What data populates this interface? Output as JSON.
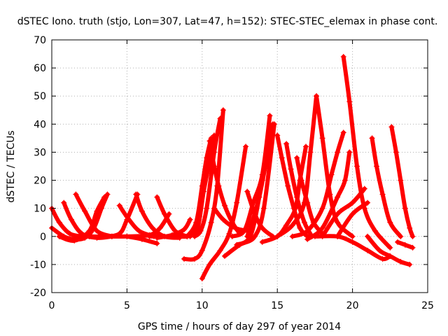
{
  "chart_data": {
    "type": "scatter",
    "title": "dSTEC Iono. truth (stjo, Lon=307, Lat=47, h=152): STEC-STEC_elemax in phase cont.",
    "xlabel": "GPS time / hours of day 297 of year 2014",
    "ylabel": "dSTEC  / TECUs",
    "xlim": [
      0,
      25
    ],
    "ylim": [
      -20,
      70
    ],
    "xticks": [
      0,
      5,
      10,
      15,
      20,
      25
    ],
    "yticks": [
      -20,
      -10,
      0,
      10,
      20,
      30,
      40,
      50,
      60,
      70
    ],
    "grid": true,
    "marker": "plus",
    "color": "#ff0000",
    "arcs": [
      [
        [
          0.0,
          10.0
        ],
        [
          0.5,
          5.0
        ],
        [
          1.2,
          1.0
        ],
        [
          2.0,
          0.0
        ]
      ],
      [
        [
          0.0,
          3.0
        ],
        [
          0.8,
          0.0
        ],
        [
          1.5,
          -1.0
        ],
        [
          2.2,
          -0.5
        ],
        [
          2.8,
          3.0
        ],
        [
          3.3,
          10.0
        ],
        [
          3.7,
          15.0
        ]
      ],
      [
        [
          0.8,
          12.0
        ],
        [
          1.3,
          6.0
        ],
        [
          2.0,
          1.0
        ],
        [
          3.0,
          -0.5
        ],
        [
          4.0,
          0.0
        ]
      ],
      [
        [
          1.6,
          15.0
        ],
        [
          2.2,
          9.0
        ],
        [
          3.0,
          2.0
        ],
        [
          4.0,
          0.0
        ]
      ],
      [
        [
          0.5,
          0.0
        ],
        [
          1.5,
          -1.5
        ],
        [
          2.5,
          2.0
        ],
        [
          3.0,
          9.0
        ],
        [
          3.5,
          14.0
        ]
      ],
      [
        [
          2.5,
          0.0
        ],
        [
          3.5,
          0.0
        ],
        [
          4.5,
          1.0
        ],
        [
          5.0,
          6.0
        ],
        [
          5.7,
          15.0
        ]
      ],
      [
        [
          4.5,
          11.0
        ],
        [
          5.0,
          7.0
        ],
        [
          5.8,
          2.0
        ],
        [
          6.8,
          0.0
        ]
      ],
      [
        [
          3.5,
          0.0
        ],
        [
          5.0,
          0.0
        ],
        [
          6.5,
          0.5
        ],
        [
          7.2,
          3.0
        ],
        [
          7.8,
          8.0
        ]
      ],
      [
        [
          5.6,
          15.0
        ],
        [
          6.0,
          9.0
        ],
        [
          6.7,
          3.0
        ],
        [
          7.5,
          0.0
        ],
        [
          8.5,
          -0.5
        ]
      ],
      [
        [
          7.0,
          14.0
        ],
        [
          7.5,
          8.0
        ],
        [
          8.2,
          2.0
        ],
        [
          9.0,
          0.0
        ]
      ],
      [
        [
          5.0,
          0.0
        ],
        [
          6.0,
          -1.0
        ],
        [
          7.0,
          -2.5
        ]
      ],
      [
        [
          7.0,
          -0.5
        ],
        [
          8.0,
          0.5
        ],
        [
          8.8,
          2.5
        ],
        [
          9.2,
          6.0
        ]
      ],
      [
        [
          6.5,
          0.0
        ],
        [
          8.0,
          0.0
        ],
        [
          9.0,
          0.0
        ],
        [
          9.5,
          1.0
        ]
      ],
      [
        [
          8.8,
          -8.0
        ],
        [
          9.5,
          -8.0
        ],
        [
          10.0,
          -5.0
        ],
        [
          10.6,
          5.0
        ],
        [
          11.0,
          18.0
        ],
        [
          11.4,
          45.0
        ]
      ],
      [
        [
          9.5,
          0.0
        ],
        [
          9.9,
          2.0
        ],
        [
          10.3,
          10.0
        ],
        [
          10.8,
          30.0
        ],
        [
          11.2,
          42.0
        ]
      ],
      [
        [
          9.2,
          0.0
        ],
        [
          9.7,
          3.0
        ],
        [
          10.1,
          16.0
        ],
        [
          10.5,
          27.0
        ],
        [
          10.8,
          36.0
        ]
      ],
      [
        [
          9.0,
          0.0
        ],
        [
          9.6,
          5.0
        ],
        [
          10.0,
          18.0
        ],
        [
          10.3,
          28.0
        ],
        [
          10.6,
          35.0
        ]
      ],
      [
        [
          10.0,
          -15.0
        ],
        [
          10.5,
          -10.0
        ],
        [
          11.2,
          -5.0
        ],
        [
          11.8,
          1.0
        ],
        [
          12.3,
          12.0
        ],
        [
          12.9,
          32.0
        ]
      ],
      [
        [
          10.5,
          34.0
        ],
        [
          10.8,
          25.0
        ],
        [
          11.1,
          18.0
        ],
        [
          11.5,
          11.0
        ],
        [
          12.0,
          5.0
        ],
        [
          12.5,
          1.0
        ]
      ],
      [
        [
          10.8,
          10.0
        ],
        [
          11.4,
          6.0
        ],
        [
          12.2,
          3.0
        ],
        [
          13.0,
          2.0
        ]
      ],
      [
        [
          11.5,
          -7.0
        ],
        [
          12.5,
          -3.0
        ],
        [
          13.5,
          0.0
        ],
        [
          14.1,
          10.0
        ],
        [
          14.8,
          40.0
        ]
      ],
      [
        [
          12.3,
          -3.0
        ],
        [
          13.2,
          0.0
        ],
        [
          13.8,
          14.0
        ],
        [
          14.3,
          28.0
        ],
        [
          14.6,
          38.0
        ]
      ],
      [
        [
          13.0,
          0.0
        ],
        [
          13.6,
          10.0
        ],
        [
          14.0,
          20.0
        ],
        [
          14.4,
          30.0
        ],
        [
          14.7,
          40.0
        ]
      ],
      [
        [
          13.0,
          16.0
        ],
        [
          13.5,
          8.0
        ],
        [
          14.0,
          3.0
        ],
        [
          14.7,
          0.0
        ]
      ],
      [
        [
          12.0,
          0.0
        ],
        [
          12.8,
          2.0
        ],
        [
          13.4,
          12.0
        ],
        [
          14.0,
          22.0
        ],
        [
          14.5,
          43.0
        ]
      ],
      [
        [
          15.0,
          36.0
        ],
        [
          15.3,
          28.0
        ],
        [
          15.7,
          18.0
        ],
        [
          16.1,
          10.0
        ],
        [
          16.5,
          3.0
        ],
        [
          17.0,
          0.0
        ]
      ],
      [
        [
          15.6,
          33.0
        ],
        [
          15.9,
          24.0
        ],
        [
          16.3,
          14.0
        ],
        [
          16.8,
          5.0
        ],
        [
          17.3,
          0.0
        ]
      ],
      [
        [
          14.0,
          -2.0
        ],
        [
          15.0,
          0.0
        ],
        [
          15.6,
          4.0
        ],
        [
          16.2,
          10.0
        ],
        [
          16.5,
          20.0
        ],
        [
          16.9,
          32.0
        ]
      ],
      [
        [
          16.3,
          28.0
        ],
        [
          16.6,
          20.0
        ],
        [
          17.0,
          12.0
        ],
        [
          17.4,
          5.0
        ],
        [
          18.0,
          1.0
        ]
      ],
      [
        [
          15.0,
          0.0
        ],
        [
          16.0,
          4.0
        ],
        [
          16.8,
          12.0
        ],
        [
          17.2,
          30.0
        ],
        [
          17.6,
          50.0
        ]
      ],
      [
        [
          17.6,
          50.0
        ],
        [
          18.0,
          35.0
        ],
        [
          18.5,
          15.0
        ],
        [
          19.0,
          5.0
        ],
        [
          20.0,
          0.0
        ]
      ],
      [
        [
          16.0,
          0.0
        ],
        [
          17.0,
          2.0
        ],
        [
          18.0,
          10.0
        ],
        [
          18.6,
          22.0
        ],
        [
          19.0,
          30.0
        ],
        [
          19.4,
          37.0
        ]
      ],
      [
        [
          19.4,
          64.0
        ],
        [
          19.8,
          48.0
        ],
        [
          20.3,
          25.0
        ],
        [
          20.8,
          10.0
        ],
        [
          21.5,
          2.0
        ],
        [
          22.5,
          -4.0
        ]
      ],
      [
        [
          17.0,
          -1.0
        ],
        [
          18.0,
          3.0
        ],
        [
          19.0,
          14.0
        ],
        [
          19.5,
          20.0
        ],
        [
          19.8,
          30.0
        ]
      ],
      [
        [
          18.0,
          0.0
        ],
        [
          19.0,
          8.0
        ],
        [
          20.0,
          12.0
        ],
        [
          20.8,
          17.0
        ]
      ],
      [
        [
          19.0,
          0.0
        ],
        [
          20.0,
          8.0
        ],
        [
          21.0,
          12.0
        ]
      ],
      [
        [
          17.5,
          0.0
        ],
        [
          19.0,
          0.0
        ],
        [
          20.0,
          -2.0
        ],
        [
          21.0,
          -5.0
        ],
        [
          22.0,
          -8.0
        ],
        [
          22.5,
          -7.0
        ]
      ],
      [
        [
          21.3,
          35.0
        ],
        [
          21.6,
          25.0
        ],
        [
          22.0,
          15.0
        ],
        [
          22.5,
          5.0
        ],
        [
          23.2,
          0.0
        ]
      ],
      [
        [
          22.6,
          39.0
        ],
        [
          22.9,
          30.0
        ],
        [
          23.2,
          20.0
        ],
        [
          23.5,
          10.0
        ],
        [
          23.8,
          3.0
        ],
        [
          24.0,
          0.0
        ]
      ],
      [
        [
          21.0,
          0.0
        ],
        [
          21.8,
          -5.0
        ],
        [
          22.5,
          -7.0
        ],
        [
          23.2,
          -9.0
        ],
        [
          23.8,
          -10.0
        ]
      ],
      [
        [
          23.0,
          -2.0
        ],
        [
          23.5,
          -3.0
        ],
        [
          24.0,
          -4.0
        ]
      ]
    ]
  }
}
